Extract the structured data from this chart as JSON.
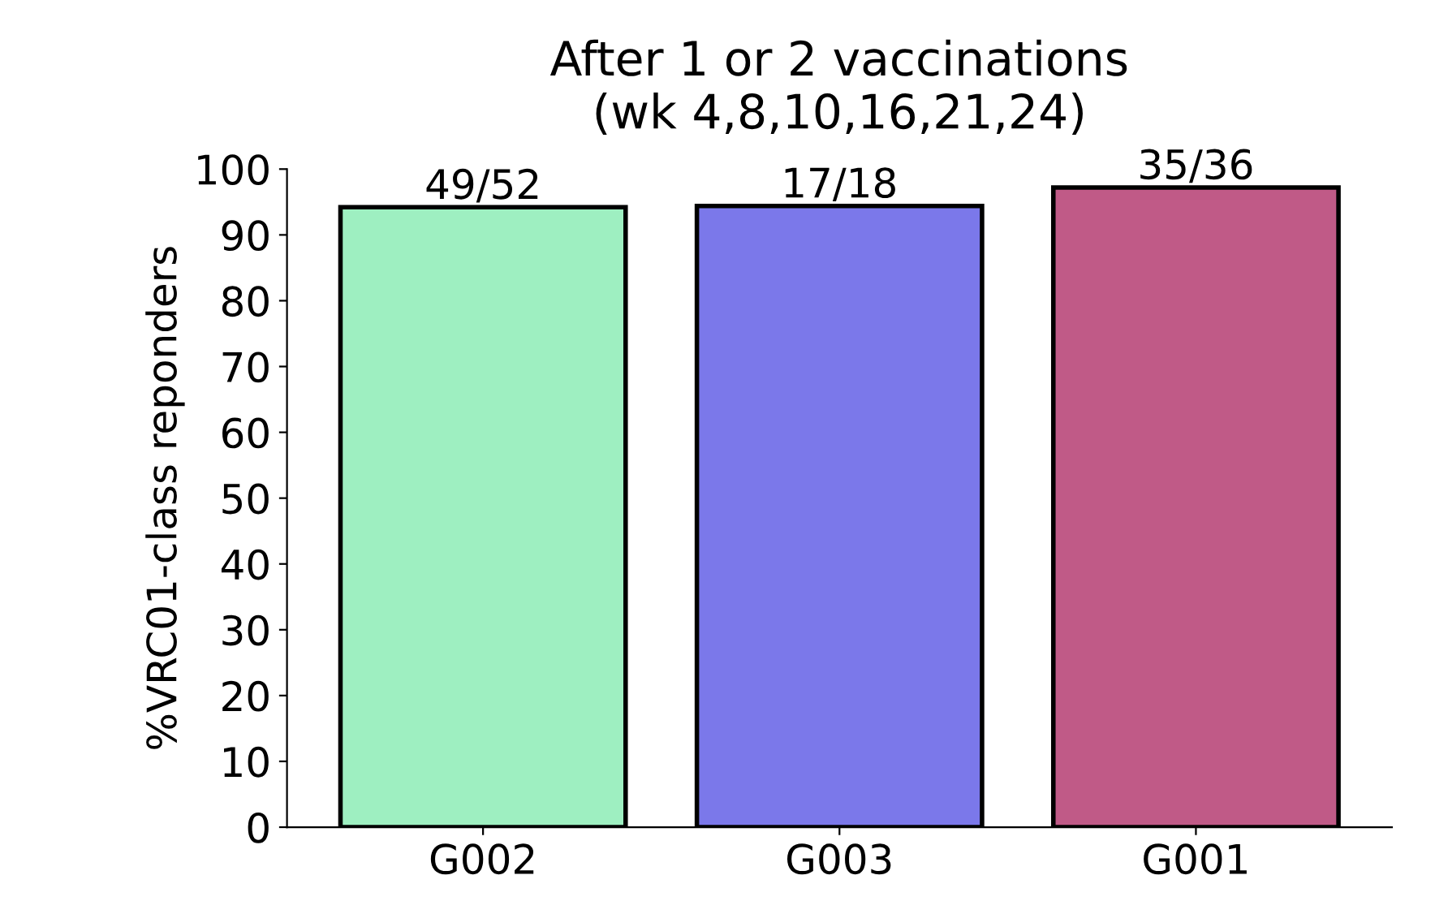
{
  "chart_data": {
    "type": "bar",
    "title": "After 1 or 2 vaccinations\n(wk 4,8,10,16,21,24)",
    "ylabel": "%VRC01-class reponders",
    "categories": [
      "G002",
      "G003",
      "G001"
    ],
    "values": [
      94.2,
      94.4,
      97.2
    ],
    "colors": [
      "#9eefc1",
      "#7b78ea",
      "#c05a87"
    ],
    "value_labels": [
      "49/52",
      "17/18",
      "35/36"
    ],
    "ylim": [
      0,
      100
    ],
    "yticks": [
      0,
      10,
      20,
      30,
      40,
      50,
      60,
      70,
      80,
      90,
      100
    ],
    "grid": false,
    "legend": false
  }
}
